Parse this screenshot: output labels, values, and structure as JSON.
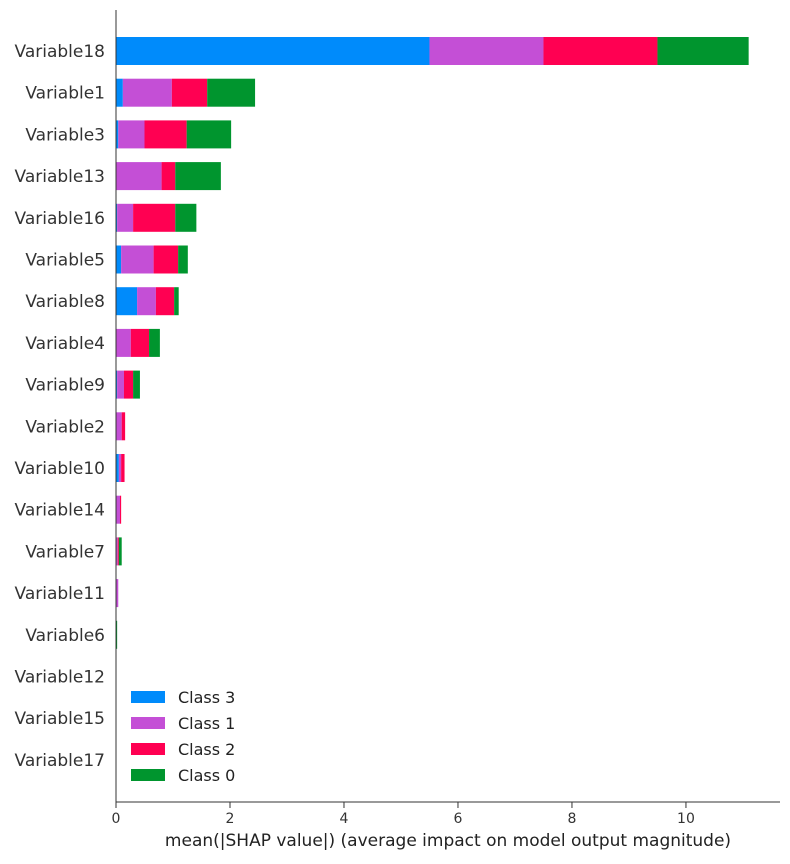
{
  "chart_data": {
    "type": "bar",
    "orientation": "horizontal",
    "stacked": true,
    "title": "",
    "xlabel": "mean(|SHAP value|) (average impact on model output magnitude)",
    "ylabel": "",
    "xlim": [
      0,
      11.65
    ],
    "xticks": [
      0,
      2,
      4,
      6,
      8,
      10
    ],
    "grid": false,
    "legend_position": "lower-left",
    "categories": [
      "Variable18",
      "Variable1",
      "Variable3",
      "Variable13",
      "Variable16",
      "Variable5",
      "Variable8",
      "Variable4",
      "Variable9",
      "Variable2",
      "Variable10",
      "Variable14",
      "Variable7",
      "Variable11",
      "Variable6",
      "Variable12",
      "Variable15",
      "Variable17"
    ],
    "series": [
      {
        "name": "Class 3",
        "color": "#008bfb",
        "values": [
          5.5,
          0.12,
          0.04,
          0.0,
          0.02,
          0.09,
          0.37,
          0.0,
          0.02,
          0.0,
          0.05,
          0.0,
          0.0,
          0.0,
          0.0,
          0.0,
          0.0,
          0.0
        ]
      },
      {
        "name": "Class 1",
        "color": "#c44fd6",
        "values": [
          2.0,
          0.86,
          0.46,
          0.8,
          0.28,
          0.57,
          0.33,
          0.26,
          0.12,
          0.1,
          0.04,
          0.07,
          0.03,
          0.04,
          0.0,
          0.0,
          0.0,
          0.0
        ]
      },
      {
        "name": "Class 2",
        "color": "#ff0052",
        "values": [
          2.0,
          0.62,
          0.74,
          0.24,
          0.74,
          0.43,
          0.32,
          0.32,
          0.16,
          0.06,
          0.06,
          0.02,
          0.02,
          0.0,
          0.0,
          0.0,
          0.0,
          0.0
        ]
      },
      {
        "name": "Class 0",
        "color": "#00952e",
        "values": [
          1.6,
          0.84,
          0.78,
          0.8,
          0.37,
          0.17,
          0.08,
          0.19,
          0.12,
          0.0,
          0.0,
          0.0,
          0.05,
          0.0,
          0.02,
          0.0,
          0.0,
          0.0
        ]
      }
    ],
    "legend_order": [
      "Class 3",
      "Class 1",
      "Class 2",
      "Class 0"
    ]
  }
}
